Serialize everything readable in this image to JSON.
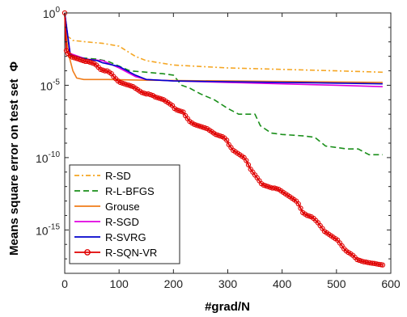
{
  "chart_data": {
    "type": "line",
    "xlabel": "#grad/N",
    "ylabel": "Means square error on test set",
    "ylabel_symbol": "Φ",
    "y_scale": "log",
    "xlim": [
      0,
      600
    ],
    "ylim_exp": [
      -18,
      0
    ],
    "x_ticks": [
      "0",
      "100",
      "200",
      "300",
      "400",
      "500",
      "600"
    ],
    "y_ticks": [
      {
        "base": "10",
        "exp": "0",
        "value": 0
      },
      {
        "base": "10",
        "exp": "-5",
        "value": -5
      },
      {
        "base": "10",
        "exp": "-10",
        "value": -10
      },
      {
        "base": "10",
        "exp": "-15",
        "value": -15
      }
    ],
    "legend_position": "bottom-left",
    "series": [
      {
        "name": "R-SD",
        "color": "#f5a623",
        "dash": "6,3,2,3",
        "marker": "none",
        "points": [
          [
            0,
            0
          ],
          [
            5,
            -1.6
          ],
          [
            15,
            -1.9
          ],
          [
            40,
            -2.0
          ],
          [
            70,
            -2.1
          ],
          [
            100,
            -2.3
          ],
          [
            130,
            -3.0
          ],
          [
            150,
            -3.3
          ],
          [
            200,
            -3.6
          ],
          [
            300,
            -3.8
          ],
          [
            400,
            -3.9
          ],
          [
            500,
            -4.0
          ],
          [
            585,
            -4.1
          ]
        ]
      },
      {
        "name": "R-L-BFGS",
        "color": "#1a8f1a",
        "dash": "7,4",
        "marker": "none",
        "points": [
          [
            0,
            0
          ],
          [
            10,
            -2.8
          ],
          [
            30,
            -3.1
          ],
          [
            60,
            -3.2
          ],
          [
            80,
            -3.35
          ],
          [
            95,
            -3.6
          ],
          [
            120,
            -4.0
          ],
          [
            150,
            -4.1
          ],
          [
            180,
            -4.2
          ],
          [
            200,
            -4.3
          ],
          [
            215,
            -5.0
          ],
          [
            230,
            -5.2
          ],
          [
            250,
            -5.6
          ],
          [
            275,
            -6.0
          ],
          [
            300,
            -6.6
          ],
          [
            320,
            -7.0
          ],
          [
            350,
            -7.0
          ],
          [
            360,
            -7.8
          ],
          [
            380,
            -8.3
          ],
          [
            400,
            -8.4
          ],
          [
            440,
            -8.5
          ],
          [
            460,
            -8.6
          ],
          [
            480,
            -9.2
          ],
          [
            520,
            -9.4
          ],
          [
            540,
            -9.4
          ],
          [
            560,
            -9.8
          ],
          [
            585,
            -9.8
          ]
        ]
      },
      {
        "name": "Grouse",
        "color": "#f07d1a",
        "dash": "",
        "marker": "none",
        "points": [
          [
            0,
            0
          ],
          [
            4,
            -2.0
          ],
          [
            8,
            -3.0
          ],
          [
            15,
            -4.0
          ],
          [
            22,
            -4.5
          ],
          [
            35,
            -4.6
          ],
          [
            80,
            -4.6
          ],
          [
            150,
            -4.65
          ],
          [
            300,
            -4.7
          ],
          [
            450,
            -4.75
          ],
          [
            585,
            -4.8
          ]
        ]
      },
      {
        "name": "R-SGD",
        "color": "#e000e0",
        "dash": "",
        "marker": "none",
        "points": [
          [
            0,
            0
          ],
          [
            10,
            -2.8
          ],
          [
            40,
            -3.2
          ],
          [
            70,
            -3.3
          ],
          [
            100,
            -3.8
          ],
          [
            130,
            -4.4
          ],
          [
            150,
            -4.6
          ],
          [
            200,
            -4.7
          ],
          [
            300,
            -4.8
          ],
          [
            400,
            -4.9
          ],
          [
            500,
            -5.0
          ],
          [
            585,
            -5.1
          ]
        ]
      },
      {
        "name": "R-SVRG",
        "color": "#0000cc",
        "dash": "",
        "marker": "none",
        "points": [
          [
            0,
            0
          ],
          [
            10,
            -2.9
          ],
          [
            40,
            -3.2
          ],
          [
            60,
            -3.3
          ],
          [
            70,
            -3.45
          ],
          [
            100,
            -3.7
          ],
          [
            130,
            -4.3
          ],
          [
            150,
            -4.6
          ],
          [
            200,
            -4.7
          ],
          [
            300,
            -4.75
          ],
          [
            400,
            -4.8
          ],
          [
            500,
            -4.85
          ],
          [
            585,
            -4.9
          ]
        ]
      },
      {
        "name": "R-SQN-VR",
        "color": "#e00000",
        "dash": "",
        "marker": "circle",
        "points": [
          [
            0,
            0
          ],
          [
            3,
            -2.6
          ],
          [
            6,
            -2.8
          ],
          [
            10,
            -2.95
          ],
          [
            14,
            -3.05
          ],
          [
            18,
            -3.1
          ],
          [
            22,
            -3.15
          ],
          [
            26,
            -3.2
          ],
          [
            30,
            -3.25
          ],
          [
            34,
            -3.3
          ],
          [
            38,
            -3.35
          ],
          [
            42,
            -3.35
          ],
          [
            46,
            -3.4
          ],
          [
            50,
            -3.45
          ],
          [
            54,
            -3.5
          ],
          [
            58,
            -3.6
          ],
          [
            62,
            -3.75
          ],
          [
            66,
            -3.9
          ],
          [
            70,
            -3.95
          ],
          [
            74,
            -4.0
          ],
          [
            78,
            -4.0
          ],
          [
            82,
            -4.1
          ],
          [
            86,
            -4.2
          ],
          [
            90,
            -4.4
          ],
          [
            94,
            -4.55
          ],
          [
            98,
            -4.7
          ],
          [
            102,
            -4.8
          ],
          [
            106,
            -4.85
          ],
          [
            110,
            -4.9
          ],
          [
            114,
            -4.95
          ],
          [
            118,
            -5.0
          ],
          [
            122,
            -5.05
          ],
          [
            126,
            -5.1
          ],
          [
            130,
            -5.2
          ],
          [
            134,
            -5.3
          ],
          [
            138,
            -5.4
          ],
          [
            142,
            -5.5
          ],
          [
            146,
            -5.55
          ],
          [
            150,
            -5.6
          ],
          [
            154,
            -5.6
          ],
          [
            158,
            -5.65
          ],
          [
            162,
            -5.7
          ],
          [
            166,
            -5.8
          ],
          [
            170,
            -5.85
          ],
          [
            174,
            -5.9
          ],
          [
            178,
            -5.95
          ],
          [
            182,
            -6.0
          ],
          [
            186,
            -6.1
          ],
          [
            190,
            -6.2
          ],
          [
            194,
            -6.3
          ],
          [
            198,
            -6.4
          ],
          [
            202,
            -6.6
          ],
          [
            206,
            -6.7
          ],
          [
            210,
            -6.75
          ],
          [
            214,
            -6.8
          ],
          [
            218,
            -6.85
          ],
          [
            222,
            -7.1
          ],
          [
            226,
            -7.3
          ],
          [
            230,
            -7.5
          ],
          [
            234,
            -7.6
          ],
          [
            238,
            -7.7
          ],
          [
            242,
            -7.75
          ],
          [
            246,
            -7.8
          ],
          [
            250,
            -7.85
          ],
          [
            254,
            -7.9
          ],
          [
            258,
            -7.95
          ],
          [
            262,
            -8.0
          ],
          [
            266,
            -8.1
          ],
          [
            270,
            -8.2
          ],
          [
            274,
            -8.3
          ],
          [
            278,
            -8.4
          ],
          [
            282,
            -8.45
          ],
          [
            286,
            -8.5
          ],
          [
            290,
            -8.55
          ],
          [
            294,
            -8.65
          ],
          [
            298,
            -8.8
          ],
          [
            302,
            -9.1
          ],
          [
            306,
            -9.3
          ],
          [
            310,
            -9.5
          ],
          [
            314,
            -9.6
          ],
          [
            318,
            -9.7
          ],
          [
            322,
            -9.8
          ],
          [
            326,
            -9.9
          ],
          [
            330,
            -10.0
          ],
          [
            334,
            -10.2
          ],
          [
            338,
            -10.5
          ],
          [
            342,
            -10.8
          ],
          [
            346,
            -11.0
          ],
          [
            350,
            -11.2
          ],
          [
            354,
            -11.4
          ],
          [
            358,
            -11.6
          ],
          [
            362,
            -11.8
          ],
          [
            366,
            -11.9
          ],
          [
            370,
            -11.95
          ],
          [
            374,
            -12.0
          ],
          [
            378,
            -12.05
          ],
          [
            382,
            -12.1
          ],
          [
            386,
            -12.1
          ],
          [
            390,
            -12.15
          ],
          [
            394,
            -12.2
          ],
          [
            398,
            -12.3
          ],
          [
            402,
            -12.4
          ],
          [
            406,
            -12.5
          ],
          [
            410,
            -12.6
          ],
          [
            414,
            -12.7
          ],
          [
            418,
            -12.8
          ],
          [
            422,
            -12.9
          ],
          [
            426,
            -13.0
          ],
          [
            430,
            -13.2
          ],
          [
            434,
            -13.5
          ],
          [
            438,
            -13.8
          ],
          [
            442,
            -13.9
          ],
          [
            446,
            -14.0
          ],
          [
            450,
            -14.05
          ],
          [
            454,
            -14.1
          ],
          [
            458,
            -14.2
          ],
          [
            462,
            -14.35
          ],
          [
            466,
            -14.5
          ],
          [
            470,
            -14.7
          ],
          [
            474,
            -14.9
          ],
          [
            478,
            -15.1
          ],
          [
            482,
            -15.2
          ],
          [
            486,
            -15.3
          ],
          [
            490,
            -15.4
          ],
          [
            494,
            -15.5
          ],
          [
            498,
            -15.6
          ],
          [
            502,
            -15.7
          ],
          [
            506,
            -15.9
          ],
          [
            510,
            -16.1
          ],
          [
            514,
            -16.3
          ],
          [
            518,
            -16.45
          ],
          [
            522,
            -16.55
          ],
          [
            526,
            -16.65
          ],
          [
            530,
            -16.75
          ],
          [
            534,
            -16.9
          ],
          [
            538,
            -17.05
          ],
          [
            542,
            -17.1
          ],
          [
            546,
            -17.15
          ],
          [
            550,
            -17.2
          ],
          [
            554,
            -17.22
          ],
          [
            558,
            -17.25
          ],
          [
            562,
            -17.28
          ],
          [
            566,
            -17.3
          ],
          [
            570,
            -17.32
          ],
          [
            574,
            -17.35
          ],
          [
            578,
            -17.38
          ],
          [
            582,
            -17.4
          ],
          [
            585,
            -17.42
          ]
        ]
      }
    ]
  }
}
